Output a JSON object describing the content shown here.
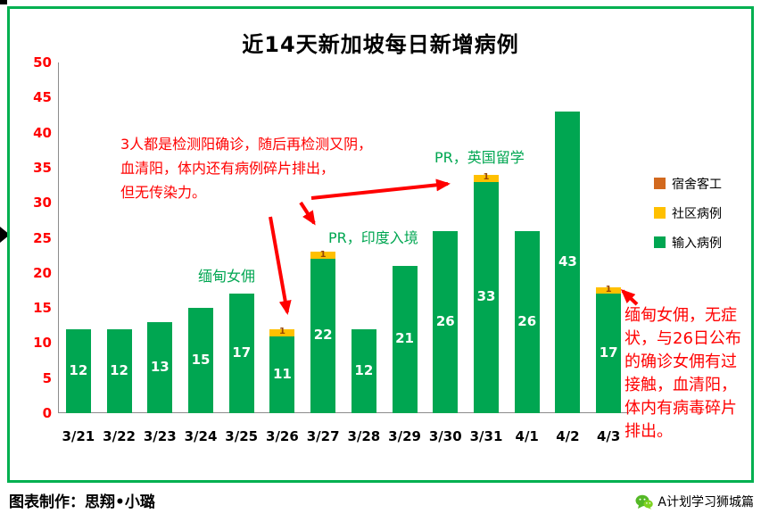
{
  "chart_data": {
    "type": "bar",
    "stacked": true,
    "title": "近14天新加坡每日新增病例",
    "categories": [
      "3/21",
      "3/22",
      "3/23",
      "3/24",
      "3/25",
      "3/26",
      "3/27",
      "3/28",
      "3/29",
      "3/30",
      "3/31",
      "4/1",
      "4/2",
      "4/3"
    ],
    "series": [
      {
        "name": "输入病例",
        "color": "#00A651",
        "label_color": "#FFFFFF",
        "label_size": 15,
        "values": [
          12,
          12,
          13,
          15,
          17,
          11,
          22,
          12,
          21,
          26,
          33,
          26,
          43,
          17
        ]
      },
      {
        "name": "社区病例",
        "color": "#FFC000",
        "label_color": "#974706",
        "label_size": 10,
        "values": [
          0,
          0,
          0,
          0,
          0,
          1,
          1,
          0,
          0,
          0,
          1,
          0,
          0,
          1
        ]
      },
      {
        "name": "宿舍客工",
        "color": "#D2691E",
        "label_color": "#FFFFFF",
        "label_size": 10,
        "values": [
          0,
          0,
          0,
          0,
          0,
          0,
          0,
          0,
          0,
          0,
          0,
          0,
          0,
          0
        ]
      }
    ],
    "legend": [
      {
        "label": "宿舍客工",
        "color": "#D2691E"
      },
      {
        "label": "社区病例",
        "color": "#FFC000"
      },
      {
        "label": "输入病例",
        "color": "#00A651"
      }
    ],
    "ylim": [
      0,
      50
    ],
    "ytick_step": 5,
    "grid": false,
    "legend_position": "right",
    "xlabel": "",
    "ylabel": "",
    "axis_tick_color": "#FF0000",
    "border_color": "#00B050"
  },
  "annotations": {
    "red_main": "3人都是检测阳确诊，随后再检测又阴，\n血清阳，体内还有病例碎片排出，\n但无传染力。",
    "green_maid": "缅甸女佣",
    "green_india": "PR，印度入境",
    "green_uk": "PR，英国留学",
    "red_right": "缅甸女佣，无症状，与26日公布的确诊女佣有过接触，血清阳，体内有病毒碎片排出。"
  },
  "footer": {
    "credit": "图表制作：思翔•小璐",
    "watermark": "A计划学习狮城篇"
  }
}
